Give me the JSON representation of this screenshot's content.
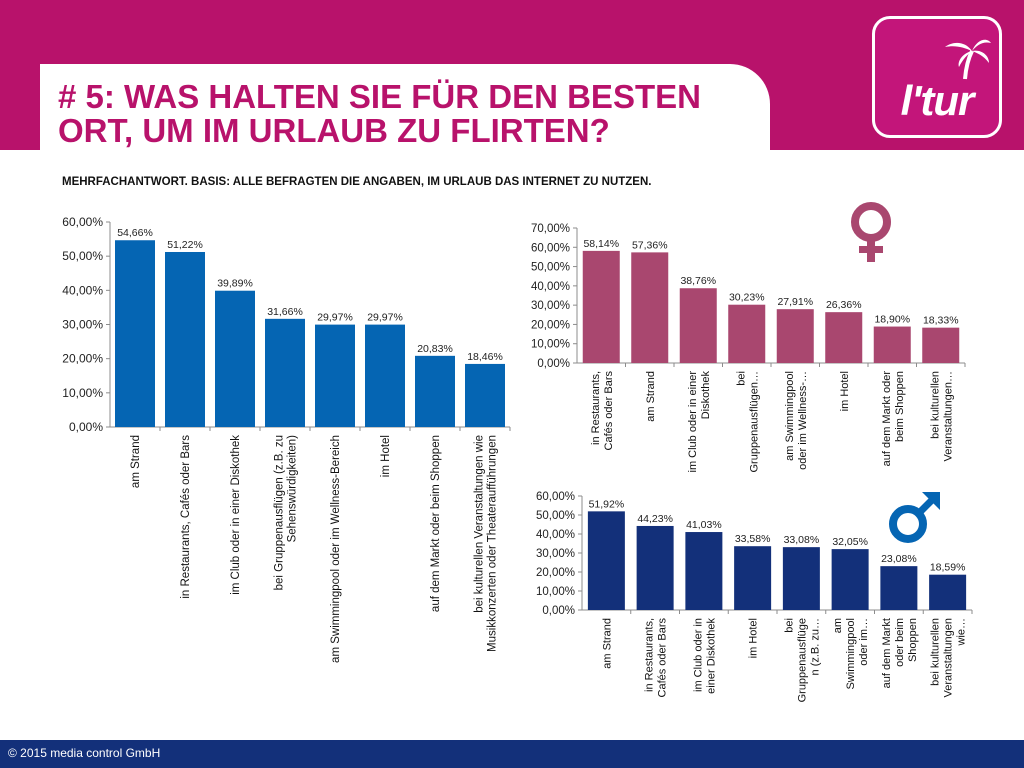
{
  "slide": {
    "title_line1": "# 5: WAS HALTEN SIE FÜR DEN BESTEN",
    "title_line2": "ORT, UM IM URLAUB ZU FLIRTEN?",
    "subtitle": "MEHRFACHANTWORT. BASIS: ALLE BEFRAGTEN DIE ANGABEN, IM URLAUB DAS INTERNET ZU NUTZEN.",
    "logo_text": "l'tur",
    "footer": "© 2015 media control GmbH"
  },
  "colors": {
    "brand": "#b8126b",
    "total": "#0565b3",
    "female": "#a9476f",
    "male": "#13307a",
    "footer": "#13307a"
  },
  "chart_data": [
    {
      "type": "bar",
      "name": "total",
      "title": "",
      "categories": [
        "am Strand",
        "in Restaurants, Cafés oder Bars",
        "im Club oder in einer Diskothek",
        "bei Gruppenausflügen (z.B. zu\nSehenswürdigkeiten)",
        "am Swimmingpool oder im Wellness-Bereich",
        "im Hotel",
        "auf dem Markt oder beim Shoppen",
        "bei kulturellen Veranstaltungen wie\nMusikkonzerten oder Theateraufführungen"
      ],
      "values": [
        54.66,
        51.22,
        39.89,
        31.66,
        29.97,
        29.97,
        20.83,
        18.46
      ],
      "value_labels": [
        "54,66%",
        "51,22%",
        "39,89%",
        "31,66%",
        "29,97%",
        "29,97%",
        "20,83%",
        "18,46%"
      ],
      "ylim": [
        0,
        60
      ],
      "yticks": [
        0,
        10,
        20,
        30,
        40,
        50,
        60
      ],
      "ytick_labels": [
        "0,00%",
        "10,00%",
        "20,00%",
        "30,00%",
        "40,00%",
        "50,00%",
        "60,00%"
      ]
    },
    {
      "type": "bar",
      "name": "female",
      "title": "",
      "categories": [
        "in Restaurants,\nCafés oder Bars",
        "am Strand",
        "im Club oder in einer\nDiskothek",
        "bei\nGruppenausflügen…",
        "am Swimmingpool\noder im Wellness-…",
        "im Hotel",
        "auf dem Markt oder\nbeim Shoppen",
        "bei kulturellen\nVeranstaltungen…"
      ],
      "values": [
        58.14,
        57.36,
        38.76,
        30.23,
        27.91,
        26.36,
        18.9,
        18.33
      ],
      "value_labels": [
        "58,14%",
        "57,36%",
        "38,76%",
        "30,23%",
        "27,91%",
        "26,36%",
        "18,90%",
        "18,33%"
      ],
      "ylim": [
        0,
        70
      ],
      "yticks": [
        0,
        10,
        20,
        30,
        40,
        50,
        60,
        70
      ],
      "ytick_labels": [
        "0,00%",
        "10,00%",
        "20,00%",
        "30,00%",
        "40,00%",
        "50,00%",
        "60,00%",
        "70,00%"
      ]
    },
    {
      "type": "bar",
      "name": "male",
      "title": "",
      "categories": [
        "am Strand",
        "in Restaurants,\nCafés oder Bars",
        "im Club oder in\neiner Diskothek",
        "im Hotel",
        "bei\nGruppenausflüge\nn (z.B. zu…",
        "am\nSwimmingpool\noder im…",
        "auf dem Markt\noder beim\nShoppen",
        "bei kulturellen\nVeranstaltungen\nwie…"
      ],
      "values": [
        51.92,
        44.23,
        41.03,
        33.58,
        33.08,
        32.05,
        23.08,
        18.59
      ],
      "value_labels": [
        "51,92%",
        "44,23%",
        "41,03%",
        "33,58%",
        "33,08%",
        "32,05%",
        "23,08%",
        "18,59%"
      ],
      "ylim": [
        0,
        60
      ],
      "yticks": [
        0,
        10,
        20,
        30,
        40,
        50,
        60
      ],
      "ytick_labels": [
        "0,00%",
        "10,00%",
        "20,00%",
        "30,00%",
        "40,00%",
        "50,00%",
        "60,00%"
      ]
    }
  ]
}
